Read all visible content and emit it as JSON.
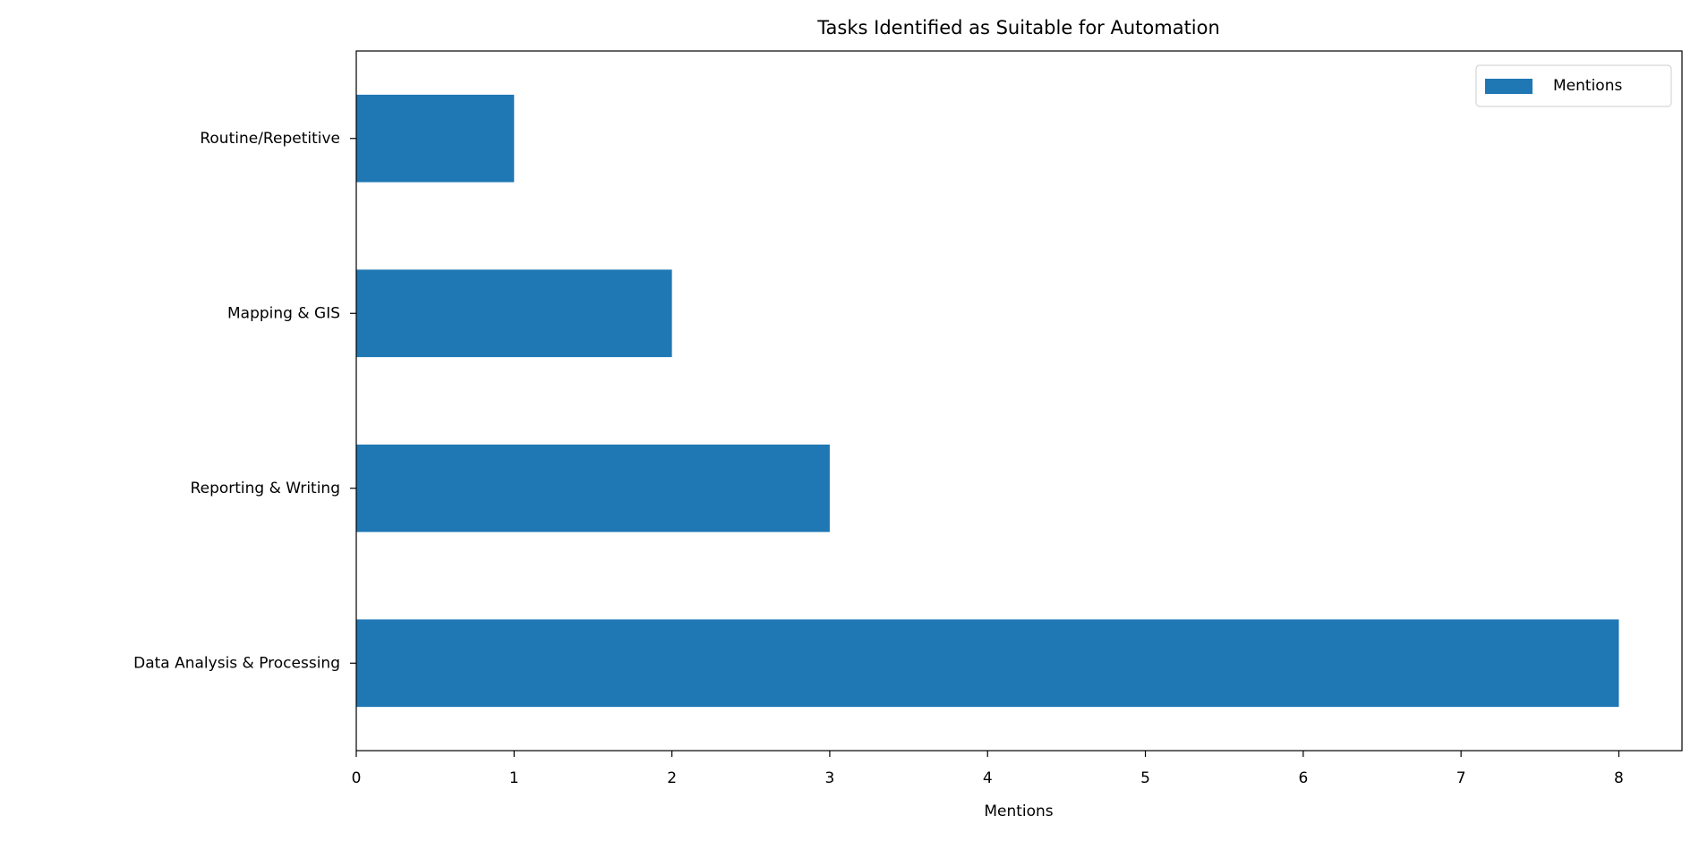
{
  "chart_data": {
    "type": "barh",
    "title": "Tasks Identified as Suitable for Automation",
    "x_label": "Mentions",
    "categories": [
      "Data Analysis & Processing",
      "Reporting & Writing",
      "Mapping & GIS",
      "Routine/Repetitive"
    ],
    "series": [
      {
        "name": "Mentions",
        "color": "#1f77b4",
        "values": [
          8,
          3,
          2,
          1
        ]
      }
    ],
    "xlim": [
      0,
      8.4
    ],
    "xticks": [
      0,
      1,
      2,
      3,
      4,
      5,
      6,
      7,
      8
    ],
    "grid": false,
    "legend": "upper right"
  }
}
